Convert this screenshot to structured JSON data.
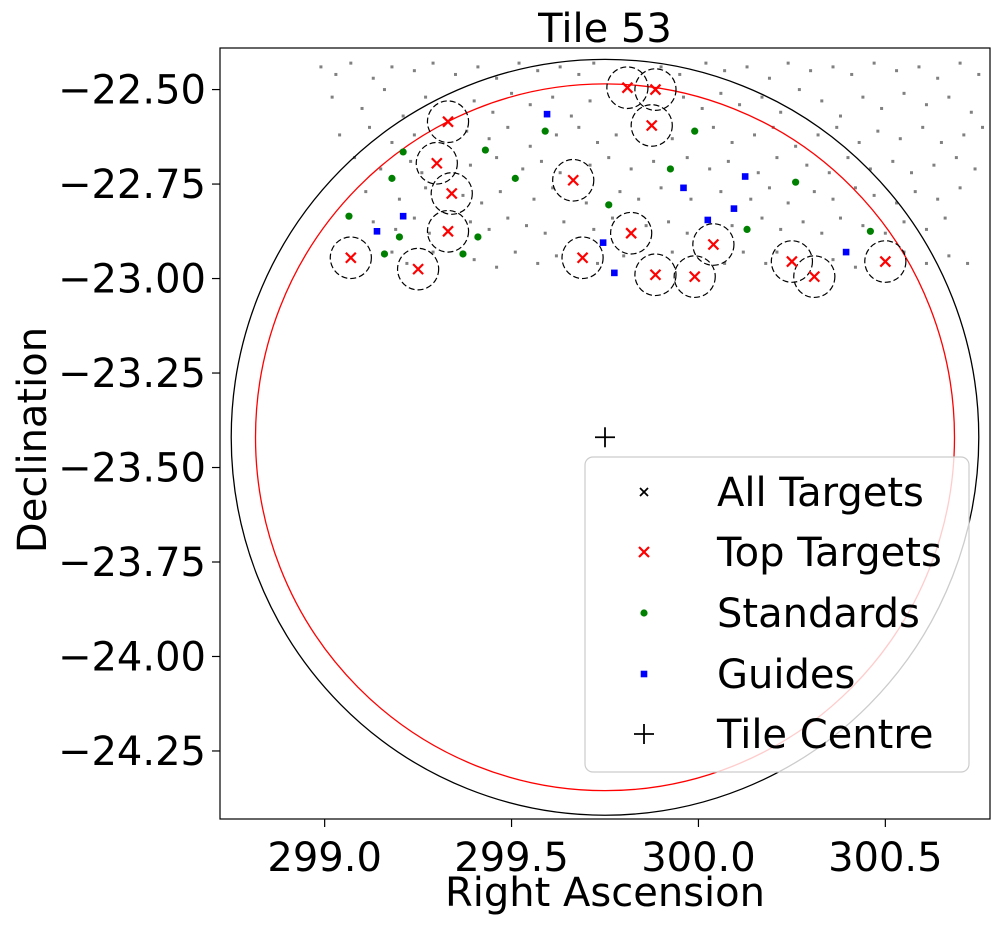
{
  "chart_data": {
    "type": "scatter",
    "title": "Tile 53",
    "xlabel": "Right Ascension",
    "ylabel": "Declination",
    "xlim": [
      298.72,
      300.78
    ],
    "ylim": [
      -24.43,
      -22.39
    ],
    "x_ticks": [
      299.0,
      299.5,
      300.0,
      300.5
    ],
    "x_tick_labels": [
      "299.0",
      "299.5",
      "300.0",
      "300.5"
    ],
    "y_ticks": [
      -22.5,
      -22.75,
      -23.0,
      -23.25,
      -23.5,
      -23.75,
      -24.0,
      -24.25
    ],
    "y_tick_labels": [
      "−22.50",
      "−22.75",
      "−23.00",
      "−23.25",
      "−23.50",
      "−23.75",
      "−24.00",
      "−24.25"
    ],
    "grid": false,
    "legend_position": "lower-right",
    "legend": [
      {
        "key": "all",
        "label": "All Targets"
      },
      {
        "key": "top",
        "label": "Top Targets"
      },
      {
        "key": "std",
        "label": "Standards"
      },
      {
        "key": "guide",
        "label": "Guides"
      },
      {
        "key": "centre",
        "label": "Tile Centre"
      }
    ],
    "colors": {
      "all": "#808080",
      "all_legend": "#000000",
      "top": "#ff0000",
      "std": "#008000",
      "guide": "#0000ff",
      "centre": "#000000",
      "outer_circle": "#000000",
      "inner_circle": "#ff0000",
      "fiber_circle": "#000000"
    },
    "tile_centre": {
      "ra": 299.75,
      "dec": -23.42
    },
    "outer_circle_radius_deg": 1.0,
    "inner_circle_radius_deg": 0.935,
    "fiber_circle_radius_deg": 0.055,
    "top_targets": [
      {
        "ra": 299.07,
        "dec": -22.945
      },
      {
        "ra": 299.25,
        "dec": -22.975
      },
      {
        "ra": 299.33,
        "dec": -22.585
      },
      {
        "ra": 299.3,
        "dec": -22.695
      },
      {
        "ra": 299.34,
        "dec": -22.775
      },
      {
        "ra": 299.33,
        "dec": -22.875
      },
      {
        "ra": 299.665,
        "dec": -22.74
      },
      {
        "ra": 299.69,
        "dec": -22.945
      },
      {
        "ra": 299.81,
        "dec": -22.495
      },
      {
        "ra": 299.885,
        "dec": -22.5
      },
      {
        "ra": 299.875,
        "dec": -22.595
      },
      {
        "ra": 299.82,
        "dec": -22.88
      },
      {
        "ra": 299.885,
        "dec": -22.99
      },
      {
        "ra": 299.99,
        "dec": -22.995
      },
      {
        "ra": 300.04,
        "dec": -22.91
      },
      {
        "ra": 300.25,
        "dec": -22.955
      },
      {
        "ra": 300.31,
        "dec": -22.995
      },
      {
        "ra": 300.5,
        "dec": -22.955
      }
    ],
    "standards": [
      {
        "ra": 299.065,
        "dec": -22.835
      },
      {
        "ra": 299.16,
        "dec": -22.935
      },
      {
        "ra": 299.18,
        "dec": -22.735
      },
      {
        "ra": 299.21,
        "dec": -22.665
      },
      {
        "ra": 299.2,
        "dec": -22.89
      },
      {
        "ra": 299.37,
        "dec": -22.935
      },
      {
        "ra": 299.41,
        "dec": -22.89
      },
      {
        "ra": 299.43,
        "dec": -22.66
      },
      {
        "ra": 299.51,
        "dec": -22.735
      },
      {
        "ra": 299.59,
        "dec": -22.61
      },
      {
        "ra": 299.76,
        "dec": -22.805
      },
      {
        "ra": 299.925,
        "dec": -22.71
      },
      {
        "ra": 299.99,
        "dec": -22.61
      },
      {
        "ra": 300.13,
        "dec": -22.87
      },
      {
        "ra": 300.26,
        "dec": -22.745
      },
      {
        "ra": 300.46,
        "dec": -22.875
      }
    ],
    "guides": [
      {
        "ra": 299.14,
        "dec": -22.875
      },
      {
        "ra": 299.21,
        "dec": -22.835
      },
      {
        "ra": 299.595,
        "dec": -22.565
      },
      {
        "ra": 299.745,
        "dec": -22.905
      },
      {
        "ra": 299.775,
        "dec": -22.985
      },
      {
        "ra": 299.96,
        "dec": -22.76
      },
      {
        "ra": 300.025,
        "dec": -22.845
      },
      {
        "ra": 300.095,
        "dec": -22.815
      },
      {
        "ra": 300.125,
        "dec": -22.73
      },
      {
        "ra": 300.395,
        "dec": -22.93
      }
    ],
    "all_targets": [
      {
        "ra": 298.99,
        "dec": -22.44
      },
      {
        "ra": 299.03,
        "dec": -22.46
      },
      {
        "ra": 299.07,
        "dec": -22.43
      },
      {
        "ra": 299.13,
        "dec": -22.47
      },
      {
        "ra": 299.18,
        "dec": -22.44
      },
      {
        "ra": 299.24,
        "dec": -22.45
      },
      {
        "ra": 299.29,
        "dec": -22.43
      },
      {
        "ra": 299.35,
        "dec": -22.46
      },
      {
        "ra": 299.41,
        "dec": -22.44
      },
      {
        "ra": 299.46,
        "dec": -22.47
      },
      {
        "ra": 299.52,
        "dec": -22.43
      },
      {
        "ra": 299.57,
        "dec": -22.45
      },
      {
        "ra": 299.63,
        "dec": -22.44
      },
      {
        "ra": 299.68,
        "dec": -22.46
      },
      {
        "ra": 299.72,
        "dec": -22.43
      },
      {
        "ra": 299.9,
        "dec": -22.44
      },
      {
        "ra": 299.95,
        "dec": -22.46
      },
      {
        "ra": 300.02,
        "dec": -22.43
      },
      {
        "ra": 300.07,
        "dec": -22.45
      },
      {
        "ra": 300.13,
        "dec": -22.44
      },
      {
        "ra": 300.19,
        "dec": -22.47
      },
      {
        "ra": 300.24,
        "dec": -22.43
      },
      {
        "ra": 300.3,
        "dec": -22.45
      },
      {
        "ra": 300.36,
        "dec": -22.44
      },
      {
        "ra": 300.41,
        "dec": -22.46
      },
      {
        "ra": 300.47,
        "dec": -22.43
      },
      {
        "ra": 300.53,
        "dec": -22.45
      },
      {
        "ra": 300.59,
        "dec": -22.44
      },
      {
        "ra": 300.64,
        "dec": -22.47
      },
      {
        "ra": 300.7,
        "dec": -22.43
      },
      {
        "ra": 300.75,
        "dec": -22.46
      },
      {
        "ra": 299.02,
        "dec": -22.52
      },
      {
        "ra": 299.1,
        "dec": -22.55
      },
      {
        "ra": 299.16,
        "dec": -22.5
      },
      {
        "ra": 299.21,
        "dec": -22.57
      },
      {
        "ra": 299.27,
        "dec": -22.52
      },
      {
        "ra": 299.4,
        "dec": -22.53
      },
      {
        "ra": 299.45,
        "dec": -22.56
      },
      {
        "ra": 299.5,
        "dec": -22.51
      },
      {
        "ra": 299.55,
        "dec": -22.54
      },
      {
        "ra": 299.61,
        "dec": -22.52
      },
      {
        "ra": 299.66,
        "dec": -22.57
      },
      {
        "ra": 299.71,
        "dec": -22.53
      },
      {
        "ra": 299.96,
        "dec": -22.52
      },
      {
        "ra": 300.01,
        "dec": -22.55
      },
      {
        "ra": 300.06,
        "dec": -22.51
      },
      {
        "ra": 300.11,
        "dec": -22.54
      },
      {
        "ra": 300.17,
        "dec": -22.52
      },
      {
        "ra": 300.22,
        "dec": -22.56
      },
      {
        "ra": 300.27,
        "dec": -22.5
      },
      {
        "ra": 300.33,
        "dec": -22.53
      },
      {
        "ra": 300.38,
        "dec": -22.57
      },
      {
        "ra": 300.44,
        "dec": -22.52
      },
      {
        "ra": 300.49,
        "dec": -22.55
      },
      {
        "ra": 300.55,
        "dec": -22.51
      },
      {
        "ra": 300.61,
        "dec": -22.54
      },
      {
        "ra": 300.67,
        "dec": -22.52
      },
      {
        "ra": 300.73,
        "dec": -22.56
      },
      {
        "ra": 299.04,
        "dec": -22.62
      },
      {
        "ra": 299.12,
        "dec": -22.6
      },
      {
        "ra": 299.18,
        "dec": -22.64
      },
      {
        "ra": 299.24,
        "dec": -22.62
      },
      {
        "ra": 299.38,
        "dec": -22.61
      },
      {
        "ra": 299.44,
        "dec": -22.63
      },
      {
        "ra": 299.49,
        "dec": -22.6
      },
      {
        "ra": 299.55,
        "dec": -22.65
      },
      {
        "ra": 299.62,
        "dec": -22.62
      },
      {
        "ra": 299.68,
        "dec": -22.6
      },
      {
        "ra": 299.73,
        "dec": -22.64
      },
      {
        "ra": 299.78,
        "dec": -22.62
      },
      {
        "ra": 299.93,
        "dec": -22.63
      },
      {
        "ra": 300.04,
        "dec": -22.6
      },
      {
        "ra": 300.09,
        "dec": -22.64
      },
      {
        "ra": 300.15,
        "dec": -22.62
      },
      {
        "ra": 300.2,
        "dec": -22.6
      },
      {
        "ra": 300.26,
        "dec": -22.65
      },
      {
        "ra": 300.32,
        "dec": -22.62
      },
      {
        "ra": 300.37,
        "dec": -22.6
      },
      {
        "ra": 300.43,
        "dec": -22.64
      },
      {
        "ra": 300.48,
        "dec": -22.61
      },
      {
        "ra": 300.54,
        "dec": -22.63
      },
      {
        "ra": 300.6,
        "dec": -22.6
      },
      {
        "ra": 300.65,
        "dec": -22.64
      },
      {
        "ra": 300.71,
        "dec": -22.62
      },
      {
        "ra": 300.76,
        "dec": -22.6
      },
      {
        "ra": 299.08,
        "dec": -22.68
      },
      {
        "ra": 299.15,
        "dec": -22.71
      },
      {
        "ra": 299.23,
        "dec": -22.69
      },
      {
        "ra": 299.26,
        "dec": -22.72
      },
      {
        "ra": 299.39,
        "dec": -22.7
      },
      {
        "ra": 299.46,
        "dec": -22.68
      },
      {
        "ra": 299.53,
        "dec": -22.71
      },
      {
        "ra": 299.58,
        "dec": -22.69
      },
      {
        "ra": 299.63,
        "dec": -22.72
      },
      {
        "ra": 299.71,
        "dec": -22.7
      },
      {
        "ra": 299.76,
        "dec": -22.68
      },
      {
        "ra": 299.82,
        "dec": -22.71
      },
      {
        "ra": 299.88,
        "dec": -22.69
      },
      {
        "ra": 299.97,
        "dec": -22.68
      },
      {
        "ra": 300.03,
        "dec": -22.71
      },
      {
        "ra": 300.08,
        "dec": -22.69
      },
      {
        "ra": 300.16,
        "dec": -22.72
      },
      {
        "ra": 300.21,
        "dec": -22.68
      },
      {
        "ra": 300.29,
        "dec": -22.7
      },
      {
        "ra": 300.35,
        "dec": -22.72
      },
      {
        "ra": 300.4,
        "dec": -22.68
      },
      {
        "ra": 300.46,
        "dec": -22.71
      },
      {
        "ra": 300.52,
        "dec": -22.69
      },
      {
        "ra": 300.57,
        "dec": -22.72
      },
      {
        "ra": 300.63,
        "dec": -22.7
      },
      {
        "ra": 300.69,
        "dec": -22.68
      },
      {
        "ra": 300.74,
        "dec": -22.71
      },
      {
        "ra": 299.11,
        "dec": -22.77
      },
      {
        "ra": 299.2,
        "dec": -22.79
      },
      {
        "ra": 299.27,
        "dec": -22.76
      },
      {
        "ra": 299.37,
        "dec": -22.78
      },
      {
        "ra": 299.42,
        "dec": -22.8
      },
      {
        "ra": 299.47,
        "dec": -22.77
      },
      {
        "ra": 299.56,
        "dec": -22.79
      },
      {
        "ra": 299.61,
        "dec": -22.76
      },
      {
        "ra": 299.7,
        "dec": -22.8
      },
      {
        "ra": 299.79,
        "dec": -22.77
      },
      {
        "ra": 299.84,
        "dec": -22.79
      },
      {
        "ra": 299.9,
        "dec": -22.76
      },
      {
        "ra": 299.98,
        "dec": -22.79
      },
      {
        "ra": 300.06,
        "dec": -22.77
      },
      {
        "ra": 300.14,
        "dec": -22.79
      },
      {
        "ra": 300.19,
        "dec": -22.76
      },
      {
        "ra": 300.24,
        "dec": -22.8
      },
      {
        "ra": 300.31,
        "dec": -22.77
      },
      {
        "ra": 300.36,
        "dec": -22.79
      },
      {
        "ra": 300.42,
        "dec": -22.76
      },
      {
        "ra": 300.47,
        "dec": -22.78
      },
      {
        "ra": 300.53,
        "dec": -22.8
      },
      {
        "ra": 300.58,
        "dec": -22.77
      },
      {
        "ra": 300.64,
        "dec": -22.79
      },
      {
        "ra": 300.7,
        "dec": -22.76
      },
      {
        "ra": 299.13,
        "dec": -22.85
      },
      {
        "ra": 299.19,
        "dec": -22.87
      },
      {
        "ra": 299.24,
        "dec": -22.84
      },
      {
        "ra": 299.28,
        "dec": -22.88
      },
      {
        "ra": 299.39,
        "dec": -22.85
      },
      {
        "ra": 299.44,
        "dec": -22.87
      },
      {
        "ra": 299.49,
        "dec": -22.84
      },
      {
        "ra": 299.54,
        "dec": -22.86
      },
      {
        "ra": 299.59,
        "dec": -22.88
      },
      {
        "ra": 299.64,
        "dec": -22.85
      },
      {
        "ra": 299.72,
        "dec": -22.87
      },
      {
        "ra": 299.77,
        "dec": -22.84
      },
      {
        "ra": 299.86,
        "dec": -22.86
      },
      {
        "ra": 299.92,
        "dec": -22.85
      },
      {
        "ra": 299.97,
        "dec": -22.88
      },
      {
        "ra": 300.09,
        "dec": -22.86
      },
      {
        "ra": 300.17,
        "dec": -22.84
      },
      {
        "ra": 300.22,
        "dec": -22.87
      },
      {
        "ra": 300.28,
        "dec": -22.85
      },
      {
        "ra": 300.33,
        "dec": -22.88
      },
      {
        "ra": 300.38,
        "dec": -22.84
      },
      {
        "ra": 300.44,
        "dec": -22.86
      },
      {
        "ra": 300.5,
        "dec": -22.88
      },
      {
        "ra": 300.55,
        "dec": -22.85
      },
      {
        "ra": 300.61,
        "dec": -22.87
      },
      {
        "ra": 300.66,
        "dec": -22.84
      },
      {
        "ra": 299.18,
        "dec": -22.93
      },
      {
        "ra": 299.22,
        "dec": -22.96
      },
      {
        "ra": 299.29,
        "dec": -22.93
      },
      {
        "ra": 299.4,
        "dec": -22.95
      },
      {
        "ra": 299.46,
        "dec": -22.97
      },
      {
        "ra": 299.51,
        "dec": -22.93
      },
      {
        "ra": 299.57,
        "dec": -22.96
      },
      {
        "ra": 299.62,
        "dec": -22.94
      },
      {
        "ra": 299.73,
        "dec": -22.96
      },
      {
        "ra": 299.8,
        "dec": -22.94
      },
      {
        "ra": 299.93,
        "dec": -22.93
      },
      {
        "ra": 300.07,
        "dec": -22.96
      },
      {
        "ra": 300.12,
        "dec": -22.93
      },
      {
        "ra": 300.18,
        "dec": -22.96
      },
      {
        "ra": 300.21,
        "dec": -22.93
      },
      {
        "ra": 300.36,
        "dec": -22.95
      },
      {
        "ra": 300.42,
        "dec": -22.97
      },
      {
        "ra": 300.55,
        "dec": -22.93
      },
      {
        "ra": 300.61,
        "dec": -22.96
      },
      {
        "ra": 300.67,
        "dec": -22.94
      },
      {
        "ra": 300.72,
        "dec": -22.96
      }
    ]
  }
}
